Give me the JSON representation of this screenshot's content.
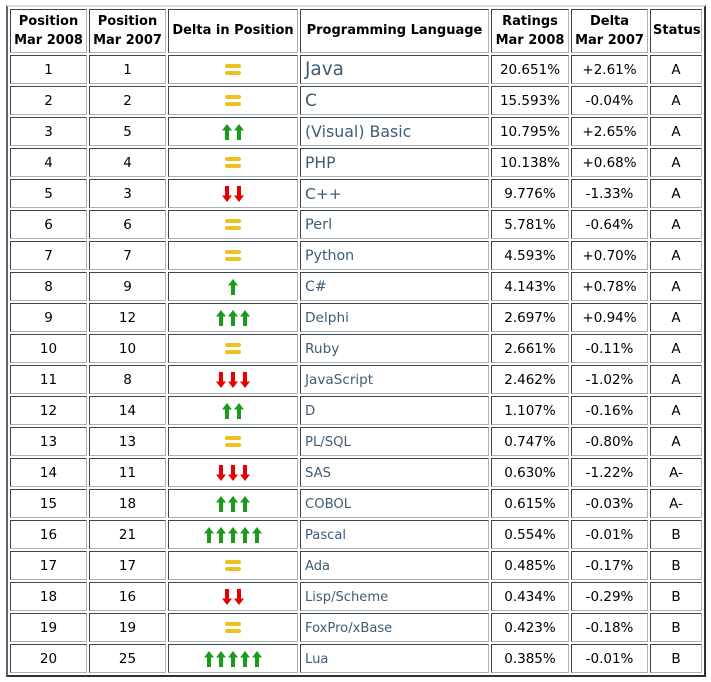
{
  "colors": {
    "up_arrow": "#1b9b1b",
    "down_arrow": "#e60000",
    "equal_sign": "#f0c020",
    "language_text": "#3e5c76"
  },
  "table": {
    "headers": [
      {
        "line1": "Position",
        "line2": "Mar 2008"
      },
      {
        "line1": "Position",
        "line2": "Mar 2007"
      },
      {
        "line1": "Delta in Position",
        "line2": ""
      },
      {
        "line1": "Programming Language",
        "line2": ""
      },
      {
        "line1": "Ratings",
        "line2": "Mar 2008"
      },
      {
        "line1": "Delta",
        "line2": "Mar 2007"
      },
      {
        "line1": "Status",
        "line2": ""
      }
    ]
  },
  "chart_data": {
    "type": "table",
    "columns": [
      "Position Mar 2008",
      "Position Mar 2007",
      "Delta in Position",
      "Programming Language",
      "Ratings Mar 2008",
      "Delta Mar 2007",
      "Status"
    ],
    "rows": [
      {
        "position_2008": "1",
        "position_2007": "1",
        "delta_in_position": "equal",
        "delta_count": 0,
        "language": "Java",
        "ratings": "20.651%",
        "delta_ratings": "+2.61%",
        "status": "A"
      },
      {
        "position_2008": "2",
        "position_2007": "2",
        "delta_in_position": "equal",
        "delta_count": 0,
        "language": "C",
        "ratings": "15.593%",
        "delta_ratings": "-0.04%",
        "status": "A"
      },
      {
        "position_2008": "3",
        "position_2007": "5",
        "delta_in_position": "up",
        "delta_count": 2,
        "language": "(Visual) Basic",
        "ratings": "10.795%",
        "delta_ratings": "+2.65%",
        "status": "A"
      },
      {
        "position_2008": "4",
        "position_2007": "4",
        "delta_in_position": "equal",
        "delta_count": 0,
        "language": "PHP",
        "ratings": "10.138%",
        "delta_ratings": "+0.68%",
        "status": "A"
      },
      {
        "position_2008": "5",
        "position_2007": "3",
        "delta_in_position": "down",
        "delta_count": 2,
        "language": "C++",
        "ratings": "9.776%",
        "delta_ratings": "-1.33%",
        "status": "A"
      },
      {
        "position_2008": "6",
        "position_2007": "6",
        "delta_in_position": "equal",
        "delta_count": 0,
        "language": "Perl",
        "ratings": "5.781%",
        "delta_ratings": "-0.64%",
        "status": "A"
      },
      {
        "position_2008": "7",
        "position_2007": "7",
        "delta_in_position": "equal",
        "delta_count": 0,
        "language": "Python",
        "ratings": "4.593%",
        "delta_ratings": "+0.70%",
        "status": "A"
      },
      {
        "position_2008": "8",
        "position_2007": "9",
        "delta_in_position": "up",
        "delta_count": 1,
        "language": "C#",
        "ratings": "4.143%",
        "delta_ratings": "+0.78%",
        "status": "A"
      },
      {
        "position_2008": "9",
        "position_2007": "12",
        "delta_in_position": "up",
        "delta_count": 3,
        "language": "Delphi",
        "ratings": "2.697%",
        "delta_ratings": "+0.94%",
        "status": "A"
      },
      {
        "position_2008": "10",
        "position_2007": "10",
        "delta_in_position": "equal",
        "delta_count": 0,
        "language": "Ruby",
        "ratings": "2.661%",
        "delta_ratings": "-0.11%",
        "status": "A"
      },
      {
        "position_2008": "11",
        "position_2007": "8",
        "delta_in_position": "down",
        "delta_count": 3,
        "language": "JavaScript",
        "ratings": "2.462%",
        "delta_ratings": "-1.02%",
        "status": "A"
      },
      {
        "position_2008": "12",
        "position_2007": "14",
        "delta_in_position": "up",
        "delta_count": 2,
        "language": "D",
        "ratings": "1.107%",
        "delta_ratings": "-0.16%",
        "status": "A"
      },
      {
        "position_2008": "13",
        "position_2007": "13",
        "delta_in_position": "equal",
        "delta_count": 0,
        "language": "PL/SQL",
        "ratings": "0.747%",
        "delta_ratings": "-0.80%",
        "status": "A"
      },
      {
        "position_2008": "14",
        "position_2007": "11",
        "delta_in_position": "down",
        "delta_count": 3,
        "language": "SAS",
        "ratings": "0.630%",
        "delta_ratings": "-1.22%",
        "status": "A-"
      },
      {
        "position_2008": "15",
        "position_2007": "18",
        "delta_in_position": "up",
        "delta_count": 3,
        "language": "COBOL",
        "ratings": "0.615%",
        "delta_ratings": "-0.03%",
        "status": "A-"
      },
      {
        "position_2008": "16",
        "position_2007": "21",
        "delta_in_position": "up",
        "delta_count": 5,
        "language": "Pascal",
        "ratings": "0.554%",
        "delta_ratings": "-0.01%",
        "status": "B"
      },
      {
        "position_2008": "17",
        "position_2007": "17",
        "delta_in_position": "equal",
        "delta_count": 0,
        "language": "Ada",
        "ratings": "0.485%",
        "delta_ratings": "-0.17%",
        "status": "B"
      },
      {
        "position_2008": "18",
        "position_2007": "16",
        "delta_in_position": "down",
        "delta_count": 2,
        "language": "Lisp/Scheme",
        "ratings": "0.434%",
        "delta_ratings": "-0.29%",
        "status": "B"
      },
      {
        "position_2008": "19",
        "position_2007": "19",
        "delta_in_position": "equal",
        "delta_count": 0,
        "language": "FoxPro/xBase",
        "ratings": "0.423%",
        "delta_ratings": "-0.18%",
        "status": "B"
      },
      {
        "position_2008": "20",
        "position_2007": "25",
        "delta_in_position": "up",
        "delta_count": 5,
        "language": "Lua",
        "ratings": "0.385%",
        "delta_ratings": "-0.01%",
        "status": "B"
      }
    ]
  }
}
